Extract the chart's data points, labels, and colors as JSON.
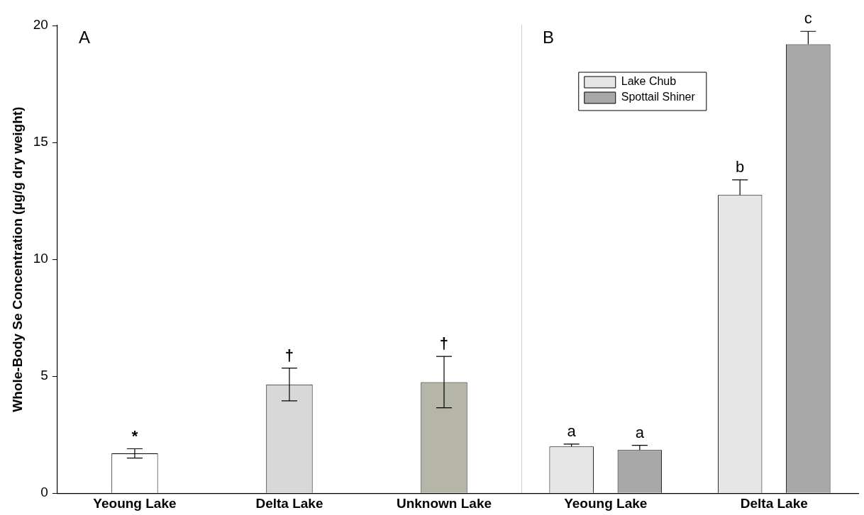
{
  "chart_data": [
    {
      "type": "bar",
      "ylabel": "Whole-Body Se Concentration (µg/g dry weight)",
      "categories": [
        "Yeoung Lake",
        "Delta Lake",
        "Unknown Lake"
      ],
      "values": [
        1.7,
        4.65,
        4.75
      ],
      "colors": [
        "#ffffff",
        "#d8d8d8",
        "#b5b5a8"
      ],
      "errors": [
        0.2,
        0.7,
        1.1
      ],
      "ylim": [
        0,
        20
      ],
      "yticks": [
        0,
        5,
        10,
        15,
        20
      ],
      "grid": false,
      "annotations": [
        "A",
        "*",
        "†",
        "†"
      ]
    },
    {
      "type": "bar",
      "categories": [
        "Yeoung Lake",
        "Delta Lake"
      ],
      "series": [
        {
          "name": "Lake Chub",
          "color": "#e6e6e6",
          "values": [
            2.0,
            12.75
          ],
          "errors": [
            [
              2.0,
              2.1
            ],
            [
              12.75,
              13.4
            ]
          ]
        },
        {
          "name": "Spottail Shiner",
          "color": "#a8a8a8",
          "values": [
            1.85,
            19.2
          ],
          "errors": [
            [
              1.85,
              2.05
            ],
            [
              19.2,
              19.75
            ]
          ]
        }
      ],
      "ylim": [
        0,
        20
      ],
      "yticks": [
        0,
        5,
        10,
        15,
        20
      ],
      "grid": false,
      "tick_labels": "x",
      "legend": "top left",
      "annotations": [
        "B",
        "a",
        "a",
        "b",
        "c"
      ]
    }
  ]
}
